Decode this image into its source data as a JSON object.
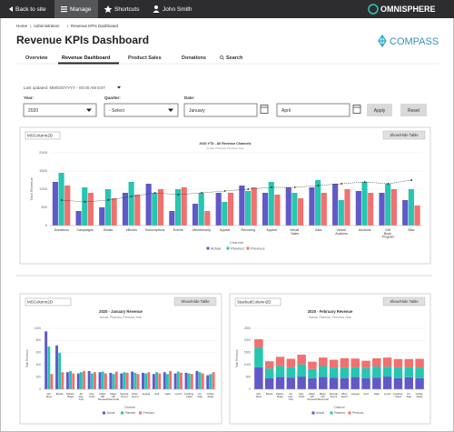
{
  "nav": {
    "back": "Back to site",
    "manage": "Manage",
    "shortcuts": "Shortcuts",
    "user": "John Smith",
    "brand": "OMNISPHERE"
  },
  "breadcrumb": [
    "Home",
    "Administration",
    "Revenue KPIs Dashboard"
  ],
  "header": {
    "title": "Revenue KPIs Dashboard",
    "logo": "COMPASS"
  },
  "tabs": [
    "Overview",
    "Revenue Dashboard",
    "Product Sales",
    "Donations",
    "Search"
  ],
  "last_updated": "Last updated: MM/DD/YYYY - 00:00 AM EST",
  "filters": {
    "year_label": "Year:",
    "year": "2020",
    "quarter_label": "Quarter:",
    "quarter": "- Select",
    "date_label": "Date:",
    "date_from": "January",
    "date_to": "April",
    "apply": "Apply",
    "reset": "Reset"
  },
  "chart_data": [
    {
      "type": "bar",
      "panel_label": "MSColumn2D",
      "toggle": "Show/Hide Table",
      "title": "2020 YTD - All Revenue Channels",
      "subtitle": "Actual, Planned, Previous Year",
      "x_label": "Channel",
      "y_label": "Total Revenue",
      "categories": [
        "Donations",
        "Campaigns",
        "Books",
        "eBooks",
        "Subscriptions",
        "Events",
        "Membership",
        "Appeal",
        "Recurring",
        "Appeal",
        "Virtual Sales",
        "Gala",
        "Virtual Auctions",
        "Auctions",
        "Gift Book Program",
        "Misc"
      ],
      "series": [
        {
          "name": "Actual",
          "color": "#6159c8",
          "values": [
            1200,
            400,
            500,
            900,
            1150,
            400,
            600,
            900,
            1100,
            900,
            1050,
            1050,
            1150,
            950,
            900,
            700
          ]
        },
        {
          "name": "Planned",
          "color": "#26c6b0",
          "values": [
            1450,
            1050,
            1000,
            1200,
            900,
            1000,
            900,
            650,
            950,
            1200,
            900,
            1250,
            700,
            1200,
            1150,
            1000
          ]
        },
        {
          "name": "Previous",
          "color": "#f0716f",
          "values": [
            1100,
            900,
            750,
            850,
            1000,
            1050,
            400,
            900,
            1050,
            850,
            750,
            900,
            1000,
            900,
            1000,
            550
          ]
        },
        {
          "type": "line",
          "color": "#222222",
          "values": [
            700,
            650,
            700,
            800,
            900,
            850,
            900,
            950,
            1000,
            1050,
            1050,
            1100,
            1150,
            1200,
            1150,
            1250
          ]
        }
      ],
      "ylim": [
        0,
        2000
      ],
      "yticks": [
        0,
        500,
        1000,
        1500,
        2000
      ],
      "grid": true
    },
    {
      "type": "bar",
      "panel_label": "MSColumn2D",
      "toggle": "Show/Hide Table",
      "title": "2020 - January Revenue",
      "subtitle": "Actual, Planned, Previous Year",
      "x_label": "Channel",
      "y_label": "Total Revenue",
      "categories": [
        "Gift Shop",
        "Books",
        "Plastic Bags",
        "All Day Tour",
        "Day Pass",
        "Major Gift Renewal",
        "Major Gift Memorial",
        "Special Event",
        "Other Event",
        "Appeal",
        "Golf",
        "Gala",
        "Lunch",
        "Cooking Class",
        "Art Sale",
        "Coffee Mugs"
      ],
      "series": [
        {
          "name": "Actual",
          "color": "#6159c8",
          "values": [
            950,
            720,
            280,
            260,
            300,
            280,
            270,
            260,
            290,
            270,
            250,
            280,
            260,
            270,
            300,
            230
          ]
        },
        {
          "name": "Planned",
          "color": "#26c6b0",
          "values": [
            700,
            600,
            300,
            280,
            260,
            290,
            250,
            280,
            270,
            260,
            280,
            250,
            290,
            260,
            280,
            250
          ]
        },
        {
          "name": "Previous",
          "color": "#f0716f",
          "values": [
            250,
            280,
            260,
            300,
            280,
            260,
            290,
            270,
            250,
            280,
            260,
            300,
            270,
            250,
            260,
            280
          ]
        }
      ],
      "ylim": [
        0,
        1000
      ],
      "yticks": [
        0,
        200,
        400,
        600,
        800,
        1000
      ],
      "grid": true
    },
    {
      "type": "stacked_bar",
      "panel_label": "StackedColumn2D",
      "toggle": "Show/Hide Table",
      "title": "2020 - February Revenue",
      "subtitle": "Actual, Planned, Previous Year",
      "x_label": "Channel",
      "y_label": "Total Revenue",
      "categories": [
        "Gift Shop",
        "Books",
        "Plastic Bags",
        "All Day Tour",
        "Day Pass",
        "Major Gift Renewal",
        "Major Gift Memorial",
        "Special Event",
        "Other Event",
        "Appeal",
        "Golf",
        "Gala",
        "Lunch",
        "Cooking Class",
        "Art Sale",
        "Coffee Mugs"
      ],
      "series": [
        {
          "name": "Actual",
          "color": "#6159c8",
          "values": [
            900,
            450,
            500,
            480,
            520,
            450,
            500,
            470,
            460,
            500,
            450,
            480,
            520,
            460,
            490,
            450
          ]
        },
        {
          "name": "Planned",
          "color": "#26c6b0",
          "values": [
            800,
            400,
            450,
            420,
            500,
            380,
            450,
            420,
            430,
            400,
            420,
            450,
            400,
            430,
            420,
            440
          ]
        },
        {
          "name": "Previous",
          "color": "#f0716f",
          "values": [
            350,
            300,
            380,
            350,
            400,
            300,
            350,
            320,
            380,
            360,
            300,
            340,
            380,
            350,
            330,
            360
          ]
        }
      ],
      "ylim": [
        0,
        2500
      ],
      "yticks": [
        0,
        500,
        1000,
        1500,
        2000,
        2500
      ],
      "grid": true
    }
  ]
}
